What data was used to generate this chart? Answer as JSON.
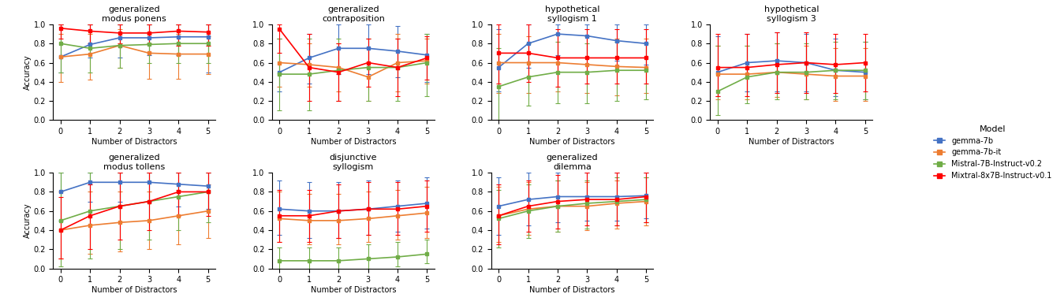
{
  "models": [
    "gemma-7b",
    "gemma-7b-it",
    "Mistral-7B-Instruct-v0.2",
    "Mixtral-8x7B-Instruct-v0.1"
  ],
  "colors": [
    "#4472C4",
    "#ED7D31",
    "#70AD47",
    "#FF0000"
  ],
  "x": [
    0,
    1,
    2,
    3,
    4,
    5
  ],
  "subplots": {
    "generalized\nmodus ponens": {
      "mean": [
        [
          0.66,
          0.79,
          0.86,
          0.86,
          0.87,
          0.87
        ],
        [
          0.66,
          0.69,
          0.78,
          0.7,
          0.69,
          0.69
        ],
        [
          0.8,
          0.75,
          0.78,
          0.79,
          0.8,
          0.8
        ],
        [
          0.96,
          0.93,
          0.91,
          0.91,
          0.93,
          0.92
        ]
      ],
      "low": [
        [
          0.5,
          0.65,
          0.65,
          0.68,
          0.68,
          0.5
        ],
        [
          0.4,
          0.42,
          0.55,
          0.43,
          0.43,
          0.48
        ],
        [
          0.5,
          0.5,
          0.55,
          0.6,
          0.6,
          0.6
        ],
        [
          0.85,
          0.8,
          0.8,
          0.8,
          0.78,
          0.78
        ]
      ],
      "high": [
        [
          1.0,
          1.0,
          1.0,
          1.0,
          1.0,
          1.0
        ],
        [
          0.9,
          0.9,
          0.95,
          0.9,
          0.9,
          0.88
        ],
        [
          1.0,
          1.0,
          1.0,
          1.0,
          1.0,
          1.0
        ],
        [
          1.0,
          1.0,
          1.0,
          1.0,
          1.0,
          1.0
        ]
      ]
    },
    "generalized\ncontraposition": {
      "mean": [
        [
          0.5,
          0.65,
          0.75,
          0.75,
          0.72,
          0.68
        ],
        [
          0.6,
          0.58,
          0.55,
          0.45,
          0.6,
          0.62
        ],
        [
          0.48,
          0.48,
          0.52,
          0.55,
          0.55,
          0.6
        ],
        [
          0.95,
          0.55,
          0.5,
          0.6,
          0.55,
          0.65
        ]
      ],
      "low": [
        [
          0.3,
          0.38,
          0.48,
          0.48,
          0.45,
          0.4
        ],
        [
          0.35,
          0.35,
          0.3,
          0.2,
          0.3,
          0.38
        ],
        [
          0.1,
          0.1,
          0.2,
          0.2,
          0.2,
          0.25
        ],
        [
          0.7,
          0.2,
          0.2,
          0.35,
          0.25,
          0.42
        ]
      ],
      "high": [
        [
          0.85,
          0.9,
          1.0,
          1.0,
          0.98,
          0.9
        ],
        [
          0.85,
          0.8,
          0.8,
          0.75,
          0.9,
          0.85
        ],
        [
          0.85,
          0.85,
          0.85,
          0.85,
          0.85,
          0.9
        ],
        [
          1.0,
          0.9,
          0.8,
          0.85,
          0.85,
          0.88
        ]
      ]
    },
    "hypothetical\nsyllogism 1": {
      "mean": [
        [
          0.55,
          0.8,
          0.9,
          0.88,
          0.83,
          0.8
        ],
        [
          0.6,
          0.6,
          0.6,
          0.58,
          0.56,
          0.55
        ],
        [
          0.35,
          0.45,
          0.5,
          0.5,
          0.52,
          0.52
        ],
        [
          0.7,
          0.7,
          0.65,
          0.65,
          0.65,
          0.65
        ]
      ],
      "low": [
        [
          0.3,
          0.55,
          0.68,
          0.65,
          0.62,
          0.58
        ],
        [
          0.28,
          0.28,
          0.3,
          0.28,
          0.26,
          0.28
        ],
        [
          0.0,
          0.15,
          0.18,
          0.18,
          0.2,
          0.22
        ],
        [
          0.38,
          0.4,
          0.35,
          0.38,
          0.38,
          0.38
        ]
      ],
      "high": [
        [
          0.95,
          1.0,
          1.0,
          1.0,
          1.0,
          1.0
        ],
        [
          0.9,
          0.88,
          0.9,
          0.88,
          0.85,
          0.85
        ],
        [
          0.75,
          0.8,
          0.82,
          0.8,
          0.82,
          0.8
        ],
        [
          1.0,
          1.0,
          0.95,
          0.95,
          0.95,
          0.95
        ]
      ]
    },
    "hypothetical\nsyllogism 3": {
      "mean": [
        [
          0.5,
          0.6,
          0.62,
          0.6,
          0.52,
          0.5
        ],
        [
          0.48,
          0.48,
          0.5,
          0.48,
          0.46,
          0.46
        ],
        [
          0.3,
          0.45,
          0.5,
          0.5,
          0.52,
          0.52
        ],
        [
          0.55,
          0.55,
          0.58,
          0.6,
          0.58,
          0.6
        ]
      ],
      "low": [
        [
          0.25,
          0.3,
          0.3,
          0.3,
          0.25,
          0.22
        ],
        [
          0.22,
          0.22,
          0.24,
          0.22,
          0.2,
          0.2
        ],
        [
          0.05,
          0.18,
          0.22,
          0.22,
          0.22,
          0.22
        ],
        [
          0.25,
          0.25,
          0.28,
          0.28,
          0.28,
          0.3
        ]
      ],
      "high": [
        [
          0.88,
          0.9,
          0.92,
          0.9,
          0.85,
          0.82
        ],
        [
          0.78,
          0.78,
          0.8,
          0.78,
          0.75,
          0.75
        ],
        [
          0.78,
          0.78,
          0.8,
          0.8,
          0.82,
          0.82
        ],
        [
          0.9,
          0.9,
          0.92,
          0.92,
          0.9,
          0.9
        ]
      ]
    },
    "generalized\nmodus tollens": {
      "mean": [
        [
          0.8,
          0.9,
          0.9,
          0.9,
          0.88,
          0.86
        ],
        [
          0.4,
          0.45,
          0.48,
          0.5,
          0.55,
          0.6
        ],
        [
          0.5,
          0.6,
          0.65,
          0.7,
          0.75,
          0.8
        ],
        [
          0.4,
          0.55,
          0.65,
          0.7,
          0.8,
          0.8
        ]
      ],
      "low": [
        [
          0.5,
          0.7,
          0.7,
          0.7,
          0.65,
          0.62
        ],
        [
          0.1,
          0.15,
          0.18,
          0.2,
          0.25,
          0.32
        ],
        [
          0.02,
          0.1,
          0.2,
          0.3,
          0.4,
          0.48
        ],
        [
          0.1,
          0.2,
          0.3,
          0.4,
          0.55,
          0.55
        ]
      ],
      "high": [
        [
          1.0,
          1.0,
          1.0,
          1.0,
          1.0,
          1.0
        ],
        [
          0.8,
          0.8,
          0.8,
          0.8,
          0.82,
          0.88
        ],
        [
          1.0,
          1.0,
          1.0,
          1.0,
          1.0,
          1.0
        ],
        [
          0.75,
          0.88,
          1.0,
          1.0,
          1.0,
          1.0
        ]
      ]
    },
    "disjunctive\nsyllogism": {
      "mean": [
        [
          0.62,
          0.6,
          0.6,
          0.62,
          0.65,
          0.68
        ],
        [
          0.52,
          0.5,
          0.5,
          0.52,
          0.55,
          0.58
        ],
        [
          0.08,
          0.08,
          0.08,
          0.1,
          0.12,
          0.15
        ],
        [
          0.55,
          0.55,
          0.6,
          0.62,
          0.62,
          0.65
        ]
      ],
      "low": [
        [
          0.35,
          0.32,
          0.32,
          0.35,
          0.38,
          0.42
        ],
        [
          0.28,
          0.25,
          0.25,
          0.28,
          0.3,
          0.32
        ],
        [
          0.0,
          0.0,
          0.0,
          0.0,
          0.02,
          0.05
        ],
        [
          0.28,
          0.28,
          0.32,
          0.35,
          0.35,
          0.38
        ]
      ],
      "high": [
        [
          0.92,
          0.9,
          0.9,
          0.92,
          0.92,
          0.95
        ],
        [
          0.8,
          0.78,
          0.78,
          0.8,
          0.82,
          0.85
        ],
        [
          0.22,
          0.22,
          0.22,
          0.25,
          0.28,
          0.3
        ],
        [
          0.82,
          0.82,
          0.88,
          0.9,
          0.9,
          0.92
        ]
      ]
    },
    "generalized\ndilemma": {
      "mean": [
        [
          0.65,
          0.72,
          0.75,
          0.75,
          0.75,
          0.76
        ],
        [
          0.55,
          0.62,
          0.65,
          0.65,
          0.68,
          0.7
        ],
        [
          0.52,
          0.6,
          0.65,
          0.68,
          0.7,
          0.72
        ],
        [
          0.55,
          0.65,
          0.7,
          0.72,
          0.72,
          0.75
        ]
      ],
      "low": [
        [
          0.35,
          0.45,
          0.48,
          0.5,
          0.5,
          0.52
        ],
        [
          0.28,
          0.35,
          0.38,
          0.4,
          0.42,
          0.45
        ],
        [
          0.22,
          0.32,
          0.38,
          0.42,
          0.45,
          0.48
        ],
        [
          0.25,
          0.38,
          0.42,
          0.45,
          0.45,
          0.48
        ]
      ],
      "high": [
        [
          0.95,
          1.0,
          1.0,
          1.0,
          1.0,
          1.0
        ],
        [
          0.85,
          0.9,
          0.92,
          0.9,
          0.92,
          0.95
        ],
        [
          0.82,
          0.88,
          0.92,
          0.92,
          0.95,
          0.95
        ],
        [
          0.88,
          0.92,
          0.98,
          1.0,
          1.0,
          1.0
        ]
      ]
    }
  },
  "legend_labels": [
    "gemma-7b",
    "gemma-7b-it",
    "Mistral-7B-Instruct-v0.2",
    "Mixtral-8x7B-Instruct-v0.1"
  ],
  "ylabel": "Accuracy",
  "xlabel": "Number of Distractors",
  "ylim": [
    0.0,
    1.0
  ],
  "yticks": [
    0.0,
    0.2,
    0.4,
    0.6,
    0.8,
    1.0
  ]
}
